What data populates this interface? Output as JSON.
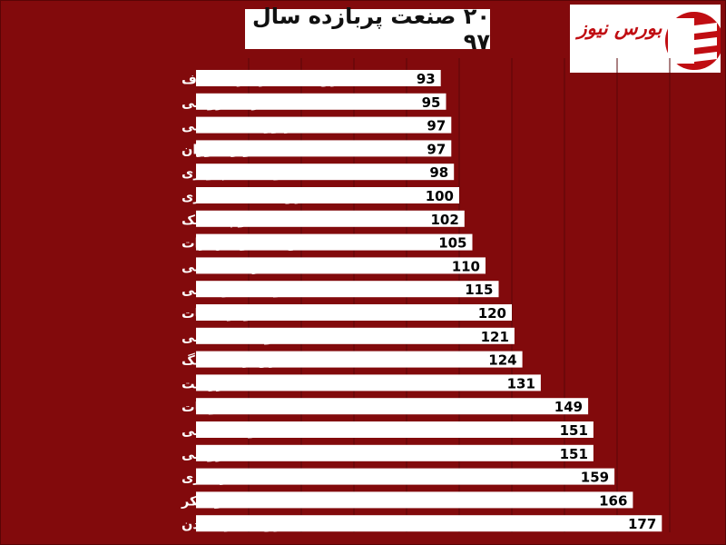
{
  "header": {
    "title": "۲۰ صنعت پربازده سال ۹۷"
  },
  "logo": {
    "text": "بورس نیوز",
    "color": "#c00d12"
  },
  "colors": {
    "background": "#820a0c",
    "bar": "#ffffff",
    "grid": "#5a0507",
    "label": "#ffffff",
    "value": "#000000"
  },
  "chart_data": {
    "type": "bar",
    "orientation": "horizontal",
    "title": "۲۰ صنعت پربازده سال ۹۷",
    "categories": [
      "استخراج نفت گاز جز اکتشاف",
      "خرده فروشی",
      "فرآورده های نفتی",
      "هتل و رستوران",
      "محصولات کامپیوتری",
      "استخراج کانه های فلزی",
      "لاستیک و پلاستیک",
      "ماشین آلات و تجهیزات",
      "فلزات اساسی",
      "وسایل ارتباطی",
      "اطلاعات و ارتباطات",
      "محصولات شیمیایی",
      "استخراج زغال سنگ",
      "زراعت",
      "منسوجات",
      "محصولات غذایی",
      "عمده فروشی",
      "کانی غیر فلزی",
      "قند و شکر",
      "استخراج سایر معادن"
    ],
    "values": [
      93,
      95,
      97,
      97,
      98,
      100,
      102,
      105,
      110,
      115,
      120,
      121,
      124,
      131,
      149,
      151,
      151,
      159,
      166,
      177
    ],
    "xlim": [
      0,
      200
    ],
    "grid": true,
    "legend": "none"
  }
}
